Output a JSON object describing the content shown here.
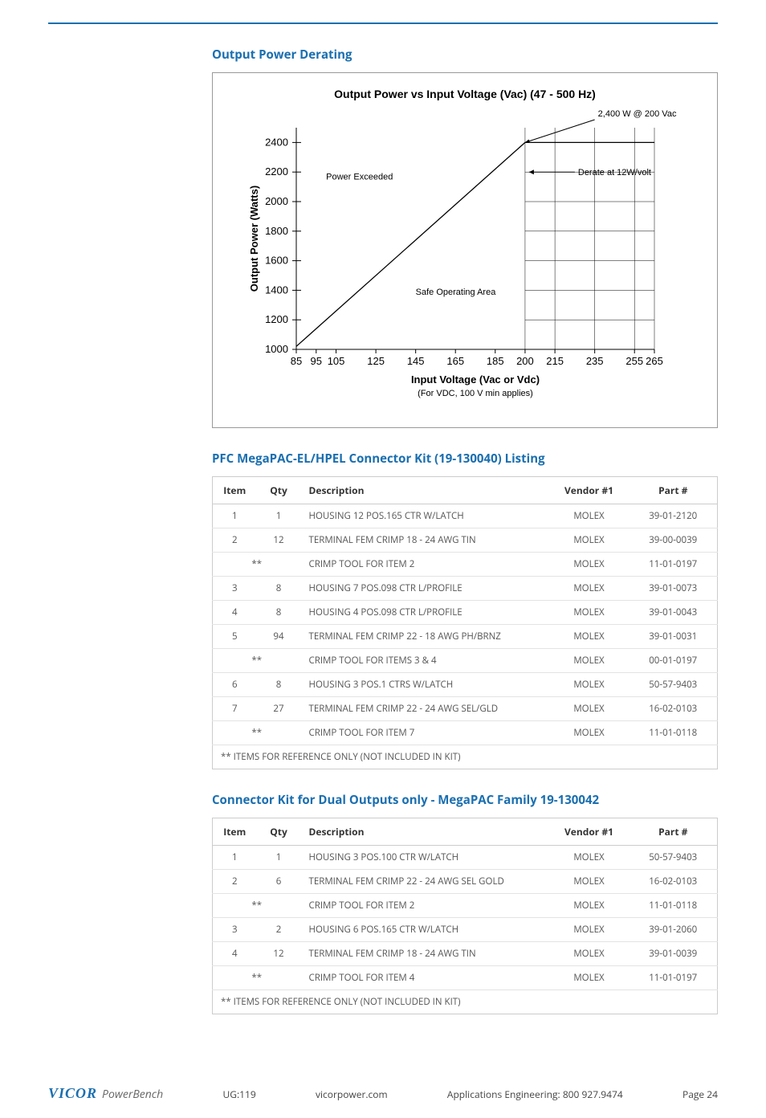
{
  "sections": {
    "derating_title": "Output Power Derating",
    "kit1_title": "PFC MegaPAC-EL/HPEL Connector Kit (19-130040) Listing",
    "kit2_title": "Connector Kit for Dual Outputs only - MegaPAC Family 19-130042"
  },
  "chart": {
    "type": "line",
    "title": "Output Power vs Input Voltage (Vac) (47 - 500 Hz)",
    "ylabel": "Output Power (Watts)",
    "xlabel": "Input Voltage (Vac or Vdc)",
    "xnote": "(For VDC, 100 V min applies)",
    "x_ticks": [
      85,
      95,
      105,
      125,
      145,
      165,
      185,
      200,
      215,
      235,
      255,
      265
    ],
    "y_ticks": [
      1000,
      1200,
      1400,
      1600,
      1800,
      2000,
      2200,
      2400
    ],
    "xlim": [
      85,
      265
    ],
    "ylim": [
      1000,
      2500
    ],
    "grid_xmin": 200,
    "series": [
      {
        "x": [
          85,
          200
        ],
        "y": [
          1020,
          2400
        ]
      },
      {
        "x": [
          200,
          265
        ],
        "y": [
          2400,
          2400
        ]
      }
    ],
    "annotations": {
      "power_exceeded": "Power Exceeded",
      "safe_area": "Safe Operating Area",
      "max_label": "2,400 W @ 200 Vac",
      "derate": "Derate at 12W/volt"
    },
    "colors": {
      "axis": "#000000",
      "grid": "#000000",
      "line": "#000000",
      "text": "#000000",
      "background": "#ffffff",
      "border": "#999999"
    },
    "stroke_width": 1,
    "title_fontsize": 14,
    "label_fontsize": 13,
    "tick_fontsize": 13
  },
  "table_headers": {
    "item": "Item",
    "qty": "Qty",
    "desc": "Description",
    "vendor": "Vendor #1",
    "part": "Part #"
  },
  "footnote": "** ITEMS FOR REFERENCE ONLY (NOT INCLUDED IN KIT)",
  "kit1": [
    {
      "item": "1",
      "qty": "1",
      "desc": "HOUSING 12 POS.165 CTR W/LATCH",
      "vendor": "MOLEX",
      "part": "39-01-2120"
    },
    {
      "item": "2",
      "qty": "12",
      "desc": "TERMINAL FEM CRIMP 18 - 24 AWG TIN",
      "vendor": "MOLEX",
      "part": "39-00-0039"
    },
    {
      "item": "**",
      "qty": "",
      "desc": "CRIMP TOOL FOR ITEM 2",
      "vendor": "MOLEX",
      "part": "11-01-0197"
    },
    {
      "item": "3",
      "qty": "8",
      "desc": "HOUSING 7 POS.098 CTR L/PROFILE",
      "vendor": "MOLEX",
      "part": "39-01-0073"
    },
    {
      "item": "4",
      "qty": "8",
      "desc": "HOUSING 4 POS.098 CTR L/PROFILE",
      "vendor": "MOLEX",
      "part": "39-01-0043"
    },
    {
      "item": "5",
      "qty": "94",
      "desc": "TERMINAL FEM CRIMP 22 - 18 AWG PH/BRNZ",
      "vendor": "MOLEX",
      "part": "39-01-0031"
    },
    {
      "item": "**",
      "qty": "",
      "desc": "CRIMP TOOL FOR ITEMS 3 & 4",
      "vendor": "MOLEX",
      "part": "00-01-0197"
    },
    {
      "item": "6",
      "qty": "8",
      "desc": "HOUSING 3 POS.1 CTRS W/LATCH",
      "vendor": "MOLEX",
      "part": "50-57-9403"
    },
    {
      "item": "7",
      "qty": "27",
      "desc": "TERMINAL FEM CRIMP 22 - 24 AWG SEL/GLD",
      "vendor": "MOLEX",
      "part": "16-02-0103"
    },
    {
      "item": "**",
      "qty": "",
      "desc": "CRIMP TOOL FOR ITEM 7",
      "vendor": "MOLEX",
      "part": "11-01-0118"
    }
  ],
  "kit2": [
    {
      "item": "1",
      "qty": "1",
      "desc": "HOUSING 3 POS.100 CTR W/LATCH",
      "vendor": "MOLEX",
      "part": "50-57-9403"
    },
    {
      "item": "2",
      "qty": "6",
      "desc": "TERMINAL FEM CRIMP 22 - 24 AWG SEL GOLD",
      "vendor": "MOLEX",
      "part": "16-02-0103"
    },
    {
      "item": "**",
      "qty": "",
      "desc": "CRIMP TOOL FOR ITEM 2",
      "vendor": "MOLEX",
      "part": "11-01-0118"
    },
    {
      "item": "3",
      "qty": "2",
      "desc": "HOUSING 6 POS.165 CTR W/LATCH",
      "vendor": "MOLEX",
      "part": "39-01-2060"
    },
    {
      "item": "4",
      "qty": "12",
      "desc": "TERMINAL FEM CRIMP 18 - 24 AWG TIN",
      "vendor": "MOLEX",
      "part": "39-01-0039"
    },
    {
      "item": "**",
      "qty": "",
      "desc": "CRIMP TOOL FOR ITEM 4",
      "vendor": "MOLEX",
      "part": "11-01-0197"
    }
  ],
  "footer": {
    "brand1": "VICOR",
    "brand2": "PowerBench",
    "ug": "UG:119",
    "url": "vicorpower.com",
    "eng": "Applications Engineering: 800 927.9474",
    "page": "Page 24"
  }
}
